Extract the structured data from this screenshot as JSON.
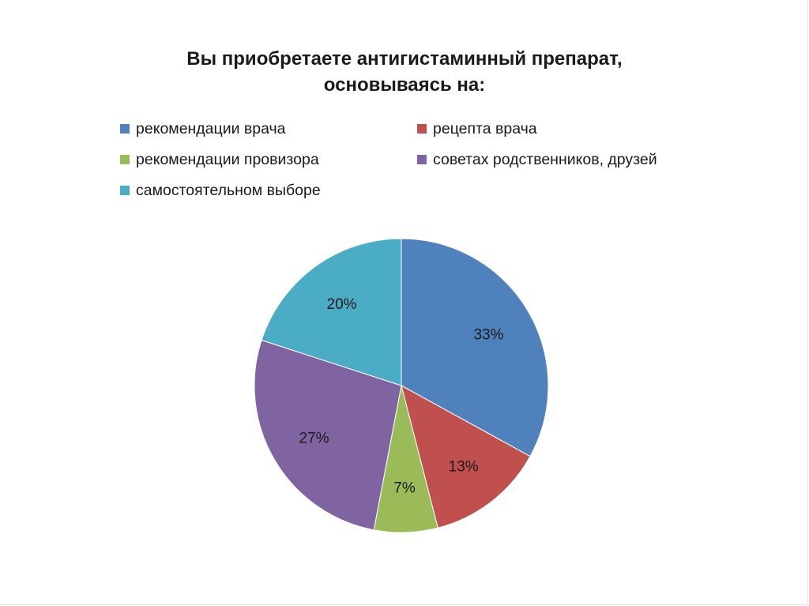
{
  "chart_data": {
    "type": "pie",
    "title_lines": [
      "Вы приобретаете антигистаминный препарат,",
      "основываясь на:"
    ],
    "categories": [
      "рекомендации врача",
      "рецепта врача",
      "рекомендации провизора",
      "советах родственников, друзей",
      "самостоятельном выборе"
    ],
    "values": [
      33,
      13,
      7,
      27,
      20
    ],
    "value_labels": [
      "33%",
      "13%",
      "7%",
      "27%",
      "20%"
    ],
    "colors": [
      "#4f81bd",
      "#c0504d",
      "#9bbb59",
      "#8064a2",
      "#4bacc6"
    ],
    "start_angle_deg": 0,
    "direction": "clockwise",
    "legend_position": "top"
  }
}
